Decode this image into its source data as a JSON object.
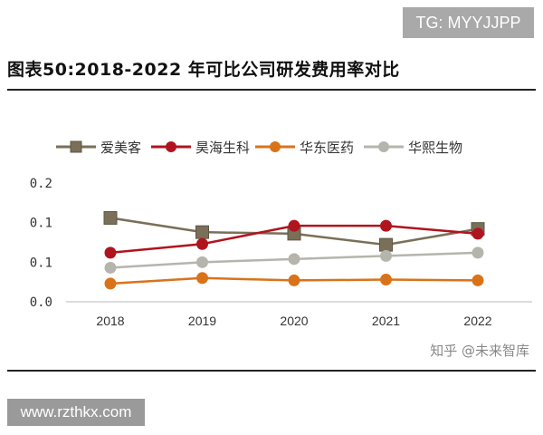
{
  "watermark_top": "TG: MYYJJPP",
  "watermark_bottom": "www.rzthkx.com",
  "credit": "知乎 @未来智库",
  "chart_data": {
    "type": "line",
    "title": "图表50:2018-2022 年可比公司研发费用率对比",
    "categories": [
      "2018",
      "2019",
      "2020",
      "2021",
      "2022"
    ],
    "ylim": [
      0,
      0.15
    ],
    "yticks": [
      {
        "value": 0,
        "label": "0.0"
      },
      {
        "value": 0.05,
        "label": "0.1"
      },
      {
        "value": 0.1,
        "label": "0.1"
      },
      {
        "value": 0.15,
        "label": "0.2"
      }
    ],
    "legend": "top",
    "grid": false,
    "series": [
      {
        "name": "爱美客",
        "color": "#7a6f58",
        "marker": "square",
        "values": [
          0.106,
          0.088,
          0.086,
          0.072,
          0.092
        ]
      },
      {
        "name": "昊海生科",
        "color": "#b0141e",
        "marker": "circle",
        "values": [
          0.062,
          0.073,
          0.096,
          0.096,
          0.086
        ]
      },
      {
        "name": "华东医药",
        "color": "#d9731a",
        "marker": "circle",
        "values": [
          0.023,
          0.03,
          0.027,
          0.028,
          0.027
        ]
      },
      {
        "name": "华熙生物",
        "color": "#b5b5ad",
        "marker": "circle",
        "values": [
          0.043,
          0.05,
          0.054,
          0.058,
          0.062
        ]
      }
    ]
  }
}
